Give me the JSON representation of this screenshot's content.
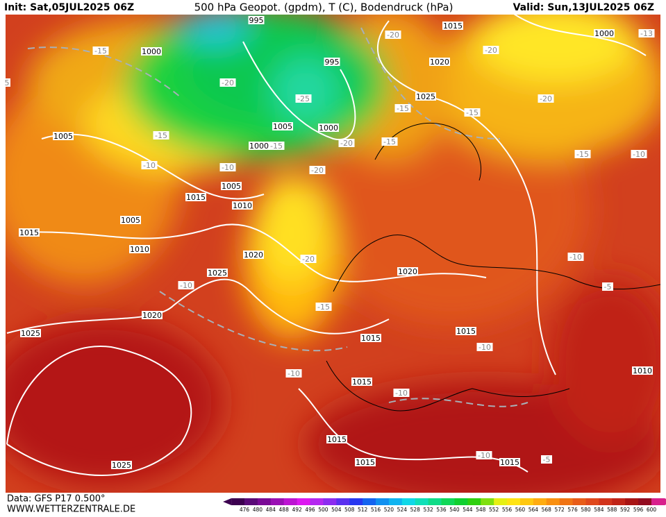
{
  "header": {
    "init": "Init: Sat,05JUL2025 06Z",
    "title": "500 hPa Geopot. (gpdm), T (C), Bodendruck (hPa)",
    "valid": "Valid: Sun,13JUL2025 06Z"
  },
  "map": {
    "isobar_labels": [
      995,
      1015,
      1000,
      995,
      1000,
      1020,
      1025,
      1005,
      1000,
      1000,
      1005,
      1005,
      1015,
      1010,
      1005,
      1015,
      1010,
      1020,
      1025,
      1020,
      1020,
      1025,
      1015,
      1015,
      1015,
      1010,
      1015,
      1015,
      1015,
      1025
    ],
    "temperature_labels": [
      -15,
      -20,
      -20,
      -13,
      -20,
      -25,
      -15,
      -15,
      -20,
      -15,
      -15,
      -20,
      -15,
      -10,
      -10,
      -20,
      -15,
      -10,
      -20,
      -10,
      -10,
      -5,
      -15,
      -10,
      -10,
      -10,
      -10,
      -5,
      5
    ]
  },
  "footer": {
    "source": "Data: GFS P17 0.500°",
    "website": "WWW.WETTERZENTRALE.DE"
  },
  "colorbar": {
    "labels": [
      476,
      480,
      484,
      488,
      492,
      496,
      500,
      504,
      508,
      512,
      516,
      520,
      524,
      528,
      532,
      536,
      540,
      544,
      548,
      552,
      556,
      560,
      564,
      568,
      572,
      576,
      580,
      584,
      588,
      592,
      596,
      600
    ]
  }
}
